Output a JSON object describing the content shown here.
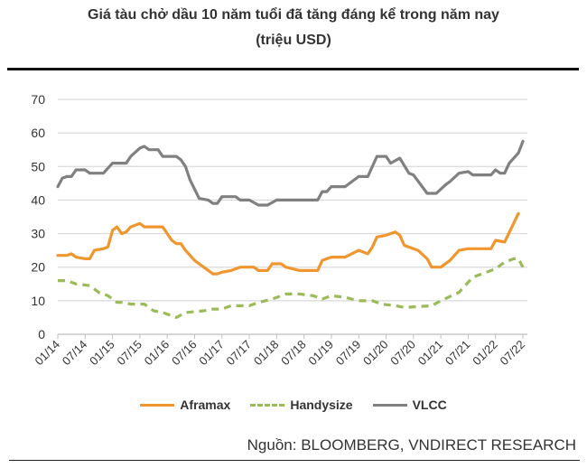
{
  "chart_data": {
    "type": "line",
    "title": "Giá tàu chở dầu 10 năm tuổi đã tăng đáng kể trong năm nay",
    "subtitle": "(triệu USD)",
    "xlabel": "",
    "ylabel": "",
    "ylim": [
      0,
      70
    ],
    "yticks": [
      0,
      10,
      20,
      30,
      40,
      50,
      60,
      70
    ],
    "xticks": [
      "01/14",
      "07/14",
      "01/15",
      "07/15",
      "01/16",
      "07/16",
      "01/17",
      "07/17",
      "01/18",
      "07/18",
      "01/19",
      "07/19",
      "01/20",
      "07/20",
      "01/21",
      "07/21",
      "01/22",
      "07/22"
    ],
    "grid": "horizontal",
    "legend": "bottom",
    "series": [
      {
        "name": "Aframax",
        "color": "#f0962e",
        "style": "solid",
        "points": [
          [
            "01/14",
            23.5
          ],
          [
            "03/14",
            23.5
          ],
          [
            "04/14",
            24
          ],
          [
            "05/14",
            23
          ],
          [
            "07/14",
            22.5
          ],
          [
            "08/14",
            22.5
          ],
          [
            "09/14",
            25
          ],
          [
            "11/14",
            25.5
          ],
          [
            "12/14",
            26
          ],
          [
            "01/15",
            31
          ],
          [
            "02/15",
            32
          ],
          [
            "03/15",
            30
          ],
          [
            "04/15",
            30.5
          ],
          [
            "05/15",
            32
          ],
          [
            "07/15",
            33
          ],
          [
            "08/15",
            32
          ],
          [
            "12/15",
            32
          ],
          [
            "02/16",
            28
          ],
          [
            "03/16",
            27
          ],
          [
            "04/16",
            27
          ],
          [
            "05/16",
            25
          ],
          [
            "07/16",
            22
          ],
          [
            "08/16",
            21
          ],
          [
            "11/16",
            18
          ],
          [
            "12/16",
            18
          ],
          [
            "01/17",
            18.5
          ],
          [
            "03/17",
            19
          ],
          [
            "05/17",
            20
          ],
          [
            "08/17",
            20
          ],
          [
            "09/17",
            19
          ],
          [
            "11/17",
            19
          ],
          [
            "12/17",
            21
          ],
          [
            "02/18",
            21
          ],
          [
            "03/18",
            20
          ],
          [
            "06/18",
            19
          ],
          [
            "10/18",
            19
          ],
          [
            "11/18",
            22
          ],
          [
            "01/19",
            23
          ],
          [
            "04/19",
            23
          ],
          [
            "07/19",
            25
          ],
          [
            "09/19",
            24
          ],
          [
            "10/19",
            26
          ],
          [
            "11/19",
            29
          ],
          [
            "01/20",
            29.5
          ],
          [
            "03/20",
            30.5
          ],
          [
            "04/20",
            29.5
          ],
          [
            "05/20",
            26.5
          ],
          [
            "08/20",
            25
          ],
          [
            "10/20",
            22.5
          ],
          [
            "11/20",
            20
          ],
          [
            "01/21",
            20
          ],
          [
            "03/21",
            22
          ],
          [
            "05/21",
            25
          ],
          [
            "07/21",
            25.5
          ],
          [
            "12/21",
            25.5
          ],
          [
            "01/22",
            28
          ],
          [
            "03/22",
            27.5
          ],
          [
            "06/22",
            36
          ]
        ]
      },
      {
        "name": "Handysize",
        "color": "#9bbb59",
        "style": "dashed",
        "points": [
          [
            "01/14",
            16
          ],
          [
            "03/14",
            16
          ],
          [
            "05/14",
            15
          ],
          [
            "08/14",
            14.5
          ],
          [
            "10/14",
            12.5
          ],
          [
            "12/14",
            11.5
          ],
          [
            "02/15",
            9.5
          ],
          [
            "03/15",
            9.5
          ],
          [
            "05/15",
            9
          ],
          [
            "08/15",
            9
          ],
          [
            "10/15",
            7
          ],
          [
            "12/15",
            6.5
          ],
          [
            "03/16",
            5
          ],
          [
            "05/16",
            6.5
          ],
          [
            "09/16",
            7
          ],
          [
            "11/16",
            7.5
          ],
          [
            "01/17",
            7.5
          ],
          [
            "03/17",
            8.5
          ],
          [
            "07/17",
            8.5
          ],
          [
            "09/17",
            9.5
          ],
          [
            "12/17",
            10.5
          ],
          [
            "03/18",
            12
          ],
          [
            "06/18",
            12
          ],
          [
            "09/18",
            11.5
          ],
          [
            "11/18",
            10.5
          ],
          [
            "01/19",
            11.5
          ],
          [
            "04/19",
            11
          ],
          [
            "07/19",
            10
          ],
          [
            "10/19",
            10
          ],
          [
            "12/19",
            9
          ],
          [
            "03/20",
            8.5
          ],
          [
            "05/20",
            8
          ],
          [
            "11/20",
            8.5
          ],
          [
            "01/21",
            10
          ],
          [
            "05/21",
            12.5
          ],
          [
            "08/21",
            17
          ],
          [
            "11/21",
            18.5
          ],
          [
            "01/22",
            19.5
          ],
          [
            "03/22",
            21.5
          ],
          [
            "05/22",
            22.5
          ],
          [
            "06/22",
            22.5
          ],
          [
            "07/22",
            20
          ]
        ]
      },
      {
        "name": "VLCC",
        "color": "#808080",
        "style": "solid",
        "points": [
          [
            "01/14",
            44
          ],
          [
            "02/14",
            46.5
          ],
          [
            "03/14",
            47
          ],
          [
            "04/14",
            47
          ],
          [
            "05/14",
            49
          ],
          [
            "07/14",
            49
          ],
          [
            "08/14",
            48
          ],
          [
            "11/14",
            48
          ],
          [
            "01/15",
            51
          ],
          [
            "04/15",
            51
          ],
          [
            "05/15",
            53
          ],
          [
            "07/15",
            55.5
          ],
          [
            "08/15",
            56
          ],
          [
            "09/15",
            55
          ],
          [
            "11/15",
            55
          ],
          [
            "12/15",
            53
          ],
          [
            "03/16",
            53
          ],
          [
            "04/16",
            52
          ],
          [
            "05/16",
            50
          ],
          [
            "06/16",
            46
          ],
          [
            "08/16",
            40.5
          ],
          [
            "10/16",
            40
          ],
          [
            "11/16",
            39
          ],
          [
            "12/16",
            39
          ],
          [
            "01/17",
            41
          ],
          [
            "04/17",
            41
          ],
          [
            "05/17",
            40
          ],
          [
            "07/17",
            40
          ],
          [
            "09/17",
            38.5
          ],
          [
            "11/17",
            38.5
          ],
          [
            "01/18",
            40
          ],
          [
            "10/18",
            40
          ],
          [
            "11/18",
            42.5
          ],
          [
            "12/18",
            42.5
          ],
          [
            "01/19",
            44
          ],
          [
            "04/19",
            44
          ],
          [
            "07/19",
            47
          ],
          [
            "09/19",
            47
          ],
          [
            "11/19",
            53
          ],
          [
            "01/20",
            53
          ],
          [
            "02/20",
            51
          ],
          [
            "04/20",
            52.5
          ],
          [
            "06/20",
            48
          ],
          [
            "07/20",
            47.5
          ],
          [
            "10/20",
            42
          ],
          [
            "12/20",
            42
          ],
          [
            "02/21",
            44.5
          ],
          [
            "03/21",
            45.5
          ],
          [
            "05/21",
            48
          ],
          [
            "07/21",
            48.5
          ],
          [
            "08/21",
            47.5
          ],
          [
            "12/21",
            47.5
          ],
          [
            "01/22",
            49
          ],
          [
            "02/22",
            48
          ],
          [
            "03/22",
            48
          ],
          [
            "04/22",
            51
          ],
          [
            "06/22",
            54
          ],
          [
            "07/22",
            57.5
          ]
        ]
      }
    ]
  },
  "source": "Nguồn: BLOOMBERG, VNDIRECT RESEARCH"
}
